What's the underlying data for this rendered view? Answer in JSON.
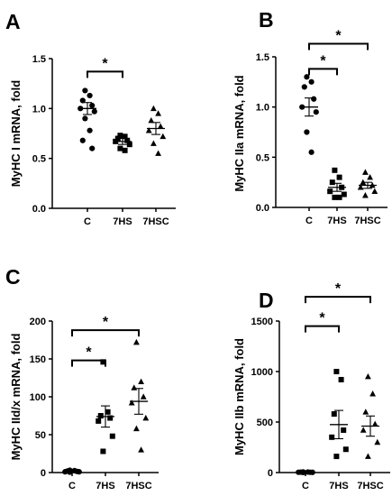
{
  "chart_data": [
    {
      "type": "scatter",
      "panel_label": "A",
      "ylabel": "MyHC I mRNA, fold",
      "ylim": [
        0,
        1.5
      ],
      "yticks": [
        "0.0",
        "0.5",
        "1.0",
        "1.5"
      ],
      "categories": [
        "C",
        "7HS",
        "7HSC"
      ],
      "markers": [
        "circle",
        "square",
        "triangle"
      ],
      "points": [
        [
          1.18,
          1.13,
          1.08,
          1.03,
          1.0,
          0.97,
          0.9,
          0.78,
          0.68,
          0.6
        ],
        [
          0.73,
          0.72,
          0.7,
          0.68,
          0.67,
          0.64,
          0.6,
          0.58
        ],
        [
          1.0,
          0.95,
          0.88,
          0.82,
          0.78,
          0.72,
          0.65,
          0.55
        ]
      ],
      "means": [
        1.0,
        0.67,
        0.8
      ],
      "sem": [
        0.06,
        0.03,
        0.06
      ],
      "brackets": [
        {
          "from": 0,
          "to": 1,
          "y": 1.37,
          "label": "*"
        }
      ]
    },
    {
      "type": "scatter",
      "panel_label": "B",
      "ylabel": "MyHC IIa mRNA, fold",
      "ylim": [
        0,
        1.5
      ],
      "yticks": [
        "0.0",
        "0.5",
        "1.0",
        "1.5"
      ],
      "categories": [
        "C",
        "7HS",
        "7HSC"
      ],
      "markers": [
        "circle",
        "square",
        "triangle"
      ],
      "points": [
        [
          1.3,
          1.25,
          1.2,
          1.08,
          1.0,
          0.95,
          0.75,
          0.55
        ],
        [
          0.37,
          0.3,
          0.25,
          0.2,
          0.16,
          0.13,
          0.1,
          0.1
        ],
        [
          0.35,
          0.3,
          0.25,
          0.22,
          0.2,
          0.16,
          0.12
        ]
      ],
      "means": [
        1.0,
        0.2,
        0.22
      ],
      "sem": [
        0.09,
        0.04,
        0.03
      ],
      "brackets": [
        {
          "from": 0,
          "to": 1,
          "y": 1.38,
          "label": "*"
        },
        {
          "from": 0,
          "to": 2,
          "y": 1.63,
          "label": "*"
        }
      ]
    },
    {
      "type": "scatter",
      "panel_label": "C",
      "ylabel": "MyHC IId/x mRNA, fold",
      "ylim": [
        0,
        200
      ],
      "yticks": [
        "0",
        "50",
        "100",
        "150",
        "200"
      ],
      "categories": [
        "C",
        "7HS",
        "7HSC"
      ],
      "markers": [
        "circle",
        "square",
        "triangle"
      ],
      "points": [
        [
          3,
          2.5,
          2,
          1.5,
          1,
          1,
          0.5
        ],
        [
          146,
          80,
          75,
          72,
          68,
          48,
          28
        ],
        [
          172,
          120,
          112,
          100,
          92,
          72,
          58,
          30
        ]
      ],
      "means": [
        1,
        74,
        94
      ],
      "sem": [
        0.5,
        14,
        17
      ],
      "brackets": [
        {
          "from": 0,
          "to": 1,
          "y": 148,
          "label": "*"
        },
        {
          "from": 0,
          "to": 2,
          "y": 188,
          "label": "*"
        }
      ]
    },
    {
      "type": "scatter",
      "panel_label": "D",
      "ylabel": "MyHC IIb mRNA, fold",
      "ylim": [
        0,
        1500
      ],
      "yticks": [
        "0",
        "500",
        "1000",
        "1500"
      ],
      "categories": [
        "C",
        "7HS",
        "7HSC"
      ],
      "markers": [
        "circle",
        "square",
        "triangle"
      ],
      "points": [
        [
          6,
          5,
          4,
          3,
          3,
          2,
          1
        ],
        [
          1000,
          920,
          580,
          420,
          350,
          230,
          160
        ],
        [
          950,
          780,
          600,
          480,
          420,
          300,
          160
        ]
      ],
      "means": [
        0,
        475,
        460
      ],
      "sem": [
        0,
        140,
        100
      ],
      "brackets": [
        {
          "from": 0,
          "to": 1,
          "y": 1450,
          "label": "*"
        },
        {
          "from": 0,
          "to": 2,
          "y": 1740,
          "label": "*"
        }
      ]
    }
  ]
}
